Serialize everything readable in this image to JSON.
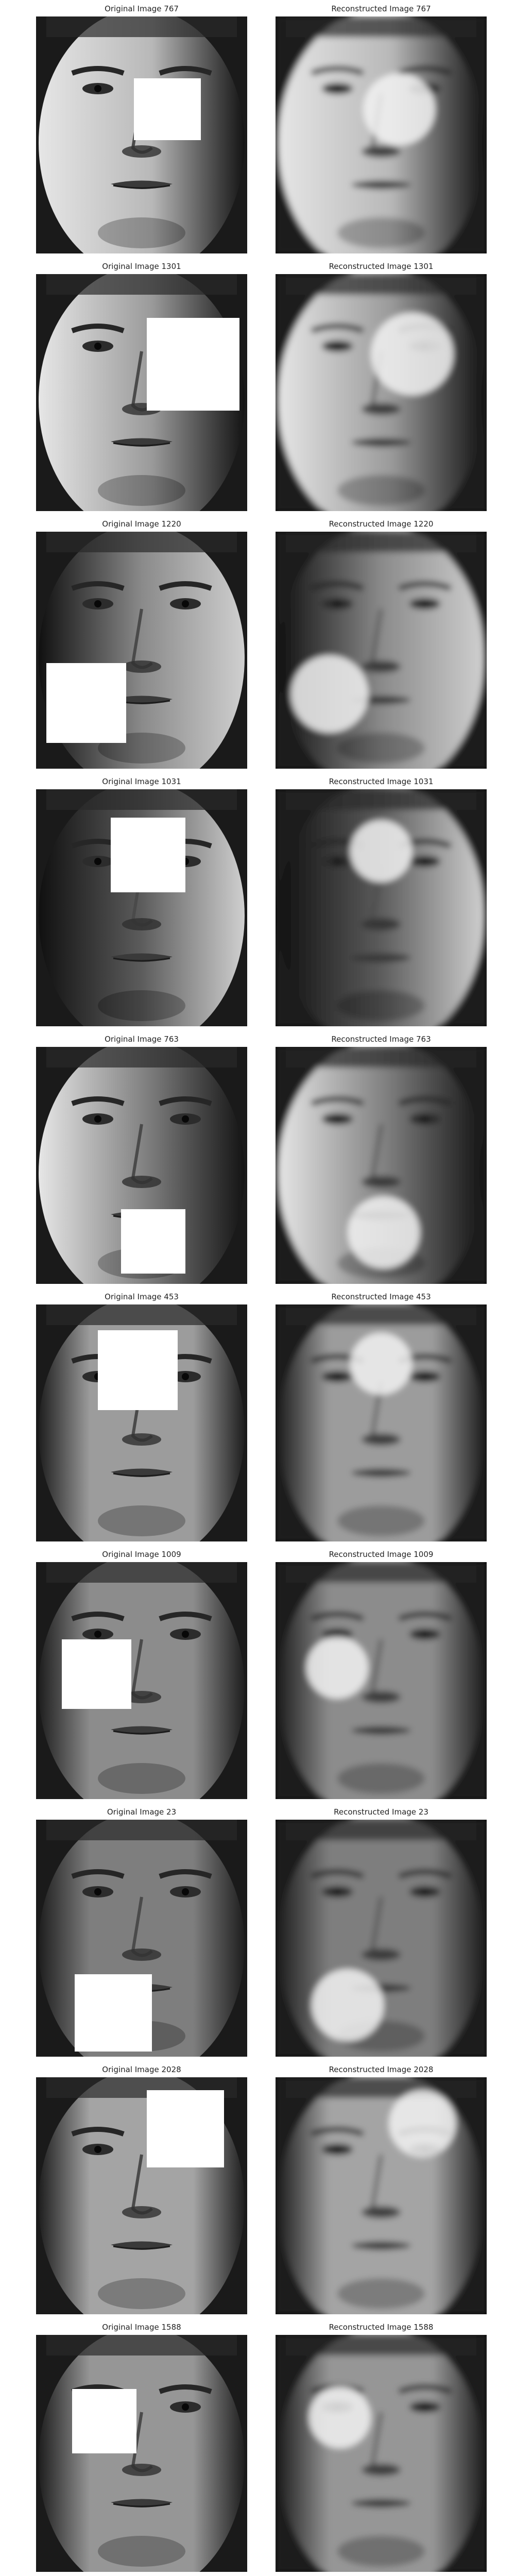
{
  "pairs": [
    {
      "original_title": "Original Image 767",
      "reconstructed_title": "Reconstructed Image 767"
    },
    {
      "original_title": "Original Image 1301",
      "reconstructed_title": "Reconstructed Image 1301"
    },
    {
      "original_title": "Original Image 1220",
      "reconstructed_title": "Reconstructed Image 1220"
    },
    {
      "original_title": "Original Image 1031",
      "reconstructed_title": "Reconstructed Image 1031"
    },
    {
      "original_title": "Original Image 763",
      "reconstructed_title": "Reconstructed Image 763"
    },
    {
      "original_title": "Original Image 453",
      "reconstructed_title": "Reconstructed Image 453"
    },
    {
      "original_title": "Original Image 1009",
      "reconstructed_title": "Reconstructed Image 1009"
    },
    {
      "original_title": "Original Image 23",
      "reconstructed_title": "Reconstructed Image 23"
    },
    {
      "original_title": "Original Image 2028",
      "reconstructed_title": "Reconstructed Image 2028"
    },
    {
      "original_title": "Original Image 1588",
      "reconstructed_title": "Reconstructed Image 1588"
    }
  ]
}
